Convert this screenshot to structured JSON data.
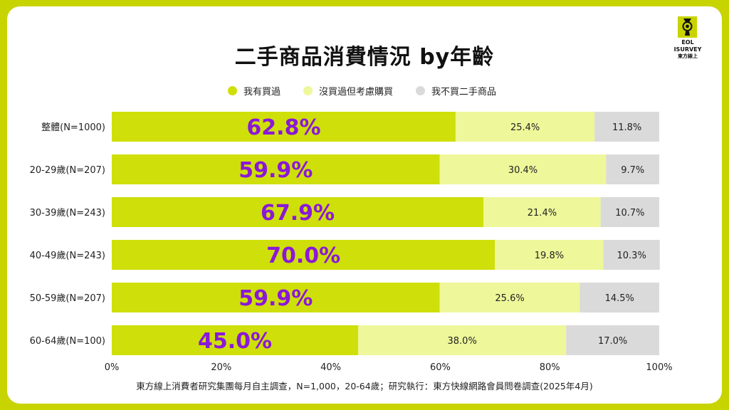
{
  "title": "二手商品消費情況  by年齡",
  "logo": {
    "line1": "EOL",
    "line2": "ISURVEY",
    "line3": "東方線上"
  },
  "footnote": "東方線上消費者研究集團每月自主調查，N=1,000，20-64歲；研究執行：東方快線網路會員問卷調查(2025年4月)",
  "colors": {
    "frame": "#c8d400",
    "bought": "#cfdf0a",
    "considering": "#eef79a",
    "never": "#dadada",
    "highlight_label": "#8a18d8"
  },
  "chart_data": {
    "type": "bar",
    "orientation": "horizontal",
    "stacked": true,
    "percent_scale": true,
    "categories": [
      "整體(N=1000)",
      "20-29歲(N=207)",
      "30-39歲(N=243)",
      "40-49歲(N=243)",
      "50-59歲(N=207)",
      "60-64歲(N=100)"
    ],
    "series": [
      {
        "name": "我有買過",
        "values": [
          62.8,
          59.9,
          67.9,
          70.0,
          59.9,
          45.0
        ],
        "labels": [
          "62.8%",
          "59.9%",
          "67.9%",
          "70.0%",
          "59.9%",
          "45.0%"
        ]
      },
      {
        "name": "沒買過但考慮購買",
        "values": [
          25.4,
          30.4,
          21.4,
          19.8,
          25.6,
          38.0
        ],
        "labels": [
          "25.4%",
          "30.4%",
          "21.4%",
          "19.8%",
          "25.6%",
          "38.0%"
        ]
      },
      {
        "name": "我不買二手商品",
        "values": [
          11.8,
          9.7,
          10.7,
          10.3,
          14.5,
          17.0
        ],
        "labels": [
          "11.8%",
          "9.7%",
          "10.7%",
          "10.3%",
          "14.5%",
          "17.0%"
        ]
      }
    ],
    "xlim": [
      0,
      100
    ],
    "xticks": [
      "0%",
      "20%",
      "40%",
      "60%",
      "80%",
      "100%"
    ],
    "grid": false,
    "legend_position": "top"
  }
}
